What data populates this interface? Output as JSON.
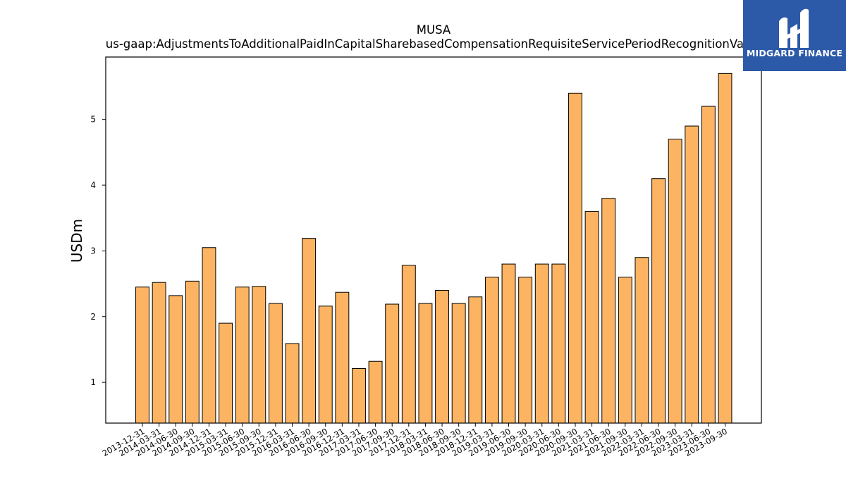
{
  "chart_data": {
    "type": "bar",
    "title": "MUSA",
    "subtitle": "us-gaap:AdjustmentsToAdditionalPaidInCapitalSharebasedCompensationRequisiteServicePeriodRecognitionValue",
    "xlabel": "",
    "ylabel": "USDm",
    "ylim": [
      0.38,
      5.95
    ],
    "yticks": [
      1,
      2,
      3,
      4,
      5
    ],
    "grid": false,
    "bar_color": "#fdb462",
    "categories": [
      "2013-12-31",
      "2014-03-31",
      "2014-06-30",
      "2014-09-30",
      "2014-12-31",
      "2015-03-31",
      "2015-06-30",
      "2015-09-30",
      "2015-12-31",
      "2016-03-31",
      "2016-06-30",
      "2016-09-30",
      "2016-12-31",
      "2017-03-31",
      "2017-06-30",
      "2017-09-30",
      "2017-12-31",
      "2018-03-31",
      "2018-06-30",
      "2018-09-30",
      "2018-12-31",
      "2019-03-31",
      "2019-06-30",
      "2019-09-30",
      "2020-03-31",
      "2020-06-30",
      "2020-09-30",
      "2021-03-31",
      "2021-06-30",
      "2021-09-30",
      "2022-03-31",
      "2022-06-30",
      "2022-09-30",
      "2023-03-31",
      "2023-06-30",
      "2023-09-30"
    ],
    "values": [
      2.45,
      2.52,
      2.32,
      2.54,
      3.05,
      1.9,
      2.45,
      2.46,
      2.2,
      1.59,
      3.19,
      2.16,
      2.37,
      1.21,
      1.32,
      2.19,
      2.78,
      2.2,
      2.4,
      2.2,
      2.3,
      2.6,
      2.8,
      2.6,
      2.8,
      2.8,
      5.4,
      3.6,
      3.8,
      2.6,
      2.9,
      4.1,
      4.7,
      4.9,
      5.2,
      5.7
    ]
  },
  "logo": {
    "brand": "MIDGARD FINANCE",
    "background": "#2d5aa8"
  }
}
